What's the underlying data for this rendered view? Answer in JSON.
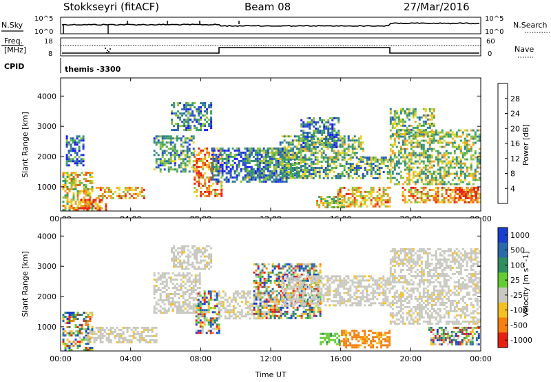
{
  "header": {
    "station": "Stokkseyri (fitACF)",
    "beam": "Beam 08",
    "date": "27/Mar/2016"
  },
  "nsky_panel": {
    "left_label": "N.Sky",
    "right_label": "N.Search",
    "left_ticks": [
      "10^5",
      "10^0"
    ],
    "right_ticks": [
      "10^5",
      "10^0"
    ]
  },
  "freq_panel": {
    "left_label_line1": "Freq.",
    "left_label_line2": "[MHz]",
    "right_label": "Nave",
    "left_ticks": [
      "18",
      "8"
    ],
    "right_ticks": [
      "60",
      "0"
    ]
  },
  "cpid": {
    "label": "CPID",
    "value": "themis -3300"
  },
  "chart_data": [
    {
      "type": "heatmap",
      "name": "power",
      "ylabel": "Slant Range [km]",
      "xlabel": "",
      "x_unit": "hours UT",
      "xlim": [
        0,
        24
      ],
      "ylim": [
        200,
        4600
      ],
      "yticks": [
        1000,
        2000,
        3000,
        4000
      ],
      "xticks": [
        "00:00",
        "04:00",
        "08:00",
        "12:00",
        "16:00",
        "20:00",
        "00:00"
      ],
      "colorbar": {
        "label": "Power [dB]",
        "range": [
          0,
          32
        ],
        "ticks": [
          4,
          8,
          12,
          16,
          20,
          24,
          28
        ],
        "colors": [
          "#1a1aff",
          "#2a4fc8",
          "#2f7f8f",
          "#3aa060",
          "#88c040",
          "#e8d020",
          "#f5a020",
          "#f06010",
          "#e82010"
        ]
      },
      "regions": [
        {
          "t0": 0.1,
          "t1": 1.8,
          "r0": 250,
          "r1": 1500,
          "level": 0.6
        },
        {
          "t0": 1.0,
          "t1": 2.6,
          "r0": 250,
          "r1": 600,
          "level": 0.85
        },
        {
          "t0": 2.0,
          "t1": 4.8,
          "r0": 600,
          "r1": 1000,
          "level": 0.7
        },
        {
          "t0": 0.3,
          "t1": 1.3,
          "r0": 1700,
          "r1": 2700,
          "level": 0.25
        },
        {
          "t0": 6.3,
          "t1": 8.6,
          "r0": 2900,
          "r1": 3800,
          "level": 0.3
        },
        {
          "t0": 5.3,
          "t1": 7.6,
          "r0": 1500,
          "r1": 2700,
          "level": 0.35
        },
        {
          "t0": 7.6,
          "t1": 9.2,
          "r0": 700,
          "r1": 2300,
          "level": 0.75
        },
        {
          "t0": 8.6,
          "t1": 13.0,
          "r0": 1200,
          "r1": 2300,
          "level": 0.25
        },
        {
          "t0": 10.5,
          "t1": 13.8,
          "r0": 1300,
          "r1": 2300,
          "level": 0.35
        },
        {
          "t0": 12.5,
          "t1": 17.3,
          "r0": 1900,
          "r1": 2700,
          "level": 0.45
        },
        {
          "t0": 12.5,
          "t1": 18.8,
          "r0": 1300,
          "r1": 2000,
          "level": 0.4
        },
        {
          "t0": 13.7,
          "t1": 15.9,
          "r0": 2300,
          "r1": 3300,
          "level": 0.3
        },
        {
          "t0": 15.8,
          "t1": 18.8,
          "r0": 350,
          "r1": 1000,
          "level": 0.7
        },
        {
          "t0": 14.6,
          "t1": 16.2,
          "r0": 350,
          "r1": 700,
          "level": 0.55
        },
        {
          "t0": 18.8,
          "t1": 21.3,
          "r0": 2700,
          "r1": 3600,
          "level": 0.45
        },
        {
          "t0": 18.8,
          "t1": 23.9,
          "r0": 1100,
          "r1": 2900,
          "level": 0.5
        },
        {
          "t0": 19.5,
          "t1": 23.9,
          "r0": 500,
          "r1": 1000,
          "level": 0.7
        },
        {
          "t0": 22.5,
          "t1": 23.9,
          "r0": 600,
          "r1": 1000,
          "level": 0.9
        }
      ]
    },
    {
      "type": "heatmap",
      "name": "velocity",
      "ylabel": "Slant Range [km]",
      "xlabel": "Time UT",
      "x_unit": "hours UT",
      "xlim": [
        0,
        24
      ],
      "ylim": [
        200,
        4600
      ],
      "yticks": [
        1000,
        2000,
        3000,
        4000
      ],
      "xticks": [
        "00:00",
        "04:00",
        "08:00",
        "12:00",
        "16:00",
        "20:00",
        "00:00"
      ],
      "colorbar": {
        "label": "Velocity [m s^-1]",
        "tick_labels": [
          "1000",
          "500",
          "100",
          "25",
          "-25",
          "-100",
          "-500",
          "-1000"
        ],
        "colors": [
          "#1a3fd0",
          "#2a6aa8",
          "#2f8f60",
          "#66cc33",
          "#c8c8c0",
          "#f5c020",
          "#f58010",
          "#e82010"
        ]
      },
      "regions": [
        {
          "t0": 0.1,
          "t1": 1.8,
          "r0": 250,
          "r1": 1500,
          "kind": "mixed"
        },
        {
          "t0": 1.4,
          "t1": 5.5,
          "r0": 500,
          "r1": 1000,
          "kind": "ground"
        },
        {
          "t0": 6.3,
          "t1": 8.6,
          "r0": 2900,
          "r1": 3700,
          "kind": "ground"
        },
        {
          "t0": 5.3,
          "t1": 8.0,
          "r0": 1500,
          "r1": 2800,
          "kind": "ground"
        },
        {
          "t0": 7.7,
          "t1": 9.1,
          "r0": 800,
          "r1": 2200,
          "kind": "mixed"
        },
        {
          "t0": 9.0,
          "t1": 12.5,
          "r0": 1300,
          "r1": 2200,
          "kind": "ground"
        },
        {
          "t0": 11.0,
          "t1": 14.8,
          "r0": 1300,
          "r1": 3100,
          "kind": "mixed"
        },
        {
          "t0": 12.6,
          "t1": 18.8,
          "r0": 1700,
          "r1": 2700,
          "kind": "ground"
        },
        {
          "t0": 15.9,
          "t1": 18.8,
          "r0": 350,
          "r1": 900,
          "kind": "orange"
        },
        {
          "t0": 14.8,
          "t1": 15.9,
          "r0": 400,
          "r1": 800,
          "kind": "green"
        },
        {
          "t0": 18.8,
          "t1": 23.9,
          "r0": 1100,
          "r1": 3600,
          "kind": "ground"
        },
        {
          "t0": 21.0,
          "t1": 23.9,
          "r0": 400,
          "r1": 1000,
          "kind": "mixed"
        }
      ]
    }
  ]
}
